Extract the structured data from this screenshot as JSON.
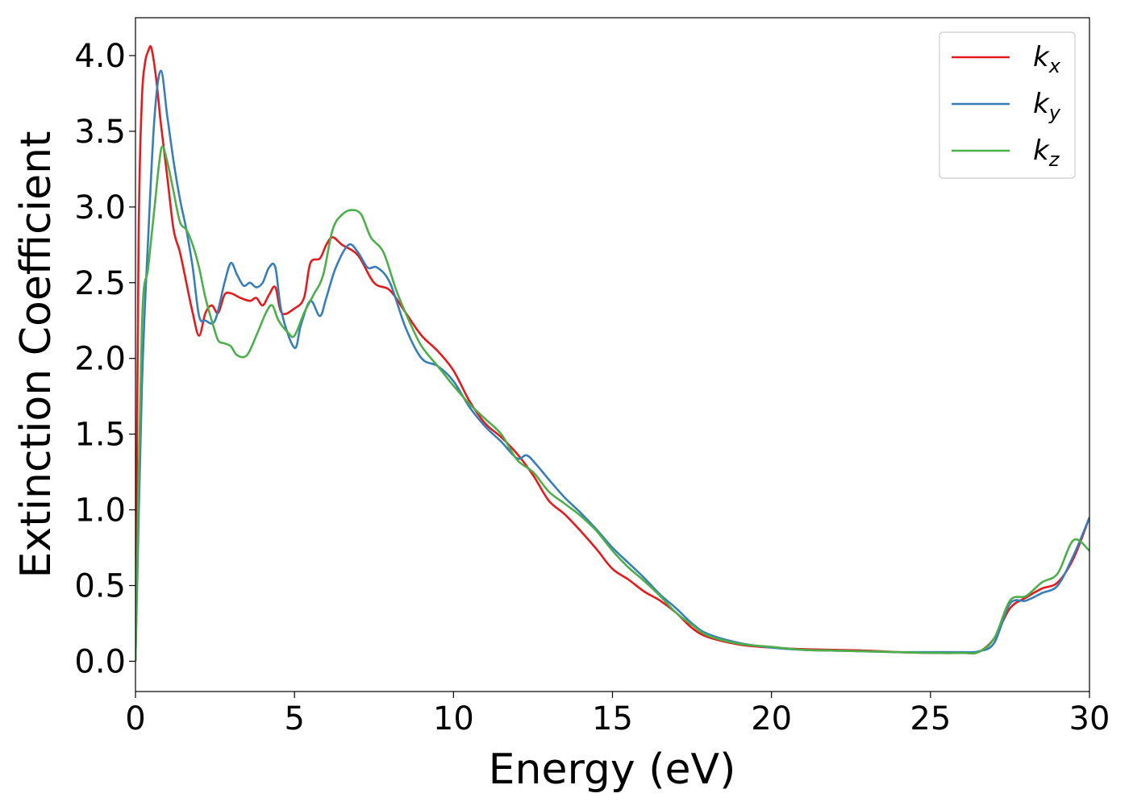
{
  "chart_data": {
    "type": "line",
    "title": "",
    "xlabel": "Energy (eV)",
    "ylabel": "Extinction Coefficient",
    "xlim": [
      0,
      30
    ],
    "ylim": [
      -0.2,
      4.25
    ],
    "xticks": [
      "0",
      "5",
      "10",
      "15",
      "20",
      "25",
      "30"
    ],
    "yticks": [
      "0.0",
      "0.5",
      "1.0",
      "1.5",
      "2.0",
      "2.5",
      "3.0",
      "3.5",
      "4.0"
    ],
    "grid": false,
    "legend_position": "top-right",
    "series": [
      {
        "name": "kx",
        "label_base": "k",
        "label_sub": "x",
        "color": "#e41a1c",
        "x": [
          0,
          0.1,
          0.2,
          0.3,
          0.4,
          0.5,
          0.65,
          0.8,
          1.0,
          1.2,
          1.4,
          1.6,
          1.8,
          2.0,
          2.2,
          2.4,
          2.6,
          2.8,
          3.0,
          3.3,
          3.6,
          3.8,
          4.0,
          4.2,
          4.4,
          4.6,
          5.0,
          5.3,
          5.5,
          5.8,
          6.0,
          6.2,
          6.5,
          7.0,
          7.5,
          8.0,
          8.5,
          9.0,
          9.5,
          10,
          10.5,
          11,
          11.5,
          12,
          12.5,
          13,
          13.5,
          14,
          14.5,
          15,
          15.5,
          16,
          16.5,
          17,
          17.5,
          18,
          19,
          20,
          21,
          22,
          23,
          24,
          25,
          26,
          26.5,
          27,
          27.5,
          28,
          28.5,
          29,
          29.5,
          30
        ],
        "y": [
          0.0,
          2.8,
          3.7,
          3.95,
          4.03,
          4.05,
          3.85,
          3.55,
          3.2,
          2.85,
          2.7,
          2.5,
          2.3,
          2.15,
          2.3,
          2.35,
          2.3,
          2.42,
          2.43,
          2.4,
          2.38,
          2.4,
          2.35,
          2.42,
          2.47,
          2.3,
          2.33,
          2.4,
          2.63,
          2.66,
          2.75,
          2.8,
          2.75,
          2.68,
          2.5,
          2.45,
          2.3,
          2.15,
          2.05,
          1.92,
          1.72,
          1.57,
          1.48,
          1.37,
          1.23,
          1.06,
          0.97,
          0.86,
          0.74,
          0.61,
          0.54,
          0.46,
          0.4,
          0.32,
          0.22,
          0.16,
          0.11,
          0.09,
          0.08,
          0.075,
          0.07,
          0.06,
          0.055,
          0.055,
          0.06,
          0.15,
          0.35,
          0.42,
          0.48,
          0.52,
          0.68,
          0.95
        ]
      },
      {
        "name": "ky",
        "label_base": "k",
        "label_sub": "y",
        "color": "#377eb8",
        "x": [
          0,
          0.2,
          0.4,
          0.6,
          0.8,
          1.0,
          1.2,
          1.4,
          1.6,
          1.8,
          2.0,
          2.2,
          2.5,
          2.8,
          3.0,
          3.2,
          3.4,
          3.6,
          3.8,
          4.0,
          4.2,
          4.4,
          4.6,
          5.0,
          5.2,
          5.5,
          5.8,
          6.0,
          6.3,
          6.7,
          7.0,
          7.3,
          7.6,
          8.0,
          8.5,
          9.0,
          9.5,
          10,
          10.5,
          11,
          11.5,
          12,
          12.3,
          12.6,
          13,
          13.5,
          14,
          14.5,
          15,
          15.5,
          16,
          16.5,
          17,
          17.5,
          18,
          19,
          20,
          21,
          22,
          23,
          24,
          25,
          26,
          26.5,
          27,
          27.5,
          28,
          28.5,
          29,
          29.5,
          30
        ],
        "y": [
          0.0,
          1.8,
          2.8,
          3.6,
          3.9,
          3.6,
          3.3,
          3.05,
          2.85,
          2.6,
          2.28,
          2.25,
          2.25,
          2.5,
          2.63,
          2.55,
          2.48,
          2.5,
          2.47,
          2.5,
          2.6,
          2.6,
          2.3,
          2.07,
          2.22,
          2.38,
          2.28,
          2.4,
          2.6,
          2.75,
          2.7,
          2.6,
          2.6,
          2.5,
          2.2,
          2.0,
          1.95,
          1.85,
          1.68,
          1.55,
          1.45,
          1.34,
          1.36,
          1.3,
          1.2,
          1.08,
          0.98,
          0.87,
          0.75,
          0.65,
          0.55,
          0.44,
          0.35,
          0.25,
          0.18,
          0.12,
          0.09,
          0.075,
          0.07,
          0.065,
          0.06,
          0.06,
          0.06,
          0.065,
          0.12,
          0.38,
          0.4,
          0.45,
          0.5,
          0.7,
          0.95
        ]
      },
      {
        "name": "kz",
        "label_base": "k",
        "label_sub": "z",
        "color": "#4daf4a",
        "x": [
          0,
          0.2,
          0.4,
          0.6,
          0.75,
          0.85,
          1.0,
          1.2,
          1.4,
          1.6,
          1.8,
          2.0,
          2.2,
          2.4,
          2.6,
          2.8,
          3.0,
          3.2,
          3.5,
          3.8,
          4.1,
          4.3,
          4.5,
          4.8,
          5.0,
          5.3,
          5.6,
          5.9,
          6.2,
          6.5,
          6.8,
          7.1,
          7.4,
          7.8,
          8.2,
          8.6,
          9.0,
          9.5,
          10,
          10.5,
          11,
          11.5,
          12,
          12.5,
          13,
          13.5,
          14,
          14.5,
          15,
          15.5,
          16,
          16.5,
          17,
          17.5,
          18,
          19,
          20,
          21,
          22,
          23,
          24,
          25,
          26,
          26.5,
          27,
          27.5,
          28,
          28.5,
          29,
          29.5,
          30
        ],
        "y": [
          0.0,
          2.2,
          2.6,
          3.0,
          3.3,
          3.4,
          3.3,
          3.1,
          2.9,
          2.85,
          2.75,
          2.6,
          2.4,
          2.25,
          2.12,
          2.1,
          2.08,
          2.02,
          2.02,
          2.15,
          2.3,
          2.35,
          2.25,
          2.17,
          2.15,
          2.3,
          2.42,
          2.55,
          2.85,
          2.95,
          2.98,
          2.95,
          2.8,
          2.7,
          2.45,
          2.25,
          2.08,
          1.95,
          1.82,
          1.7,
          1.6,
          1.5,
          1.33,
          1.25,
          1.12,
          1.04,
          0.96,
          0.86,
          0.73,
          0.62,
          0.53,
          0.43,
          0.32,
          0.24,
          0.17,
          0.115,
          0.095,
          0.075,
          0.07,
          0.065,
          0.06,
          0.055,
          0.055,
          0.06,
          0.15,
          0.4,
          0.43,
          0.52,
          0.58,
          0.8,
          0.73
        ]
      }
    ]
  }
}
